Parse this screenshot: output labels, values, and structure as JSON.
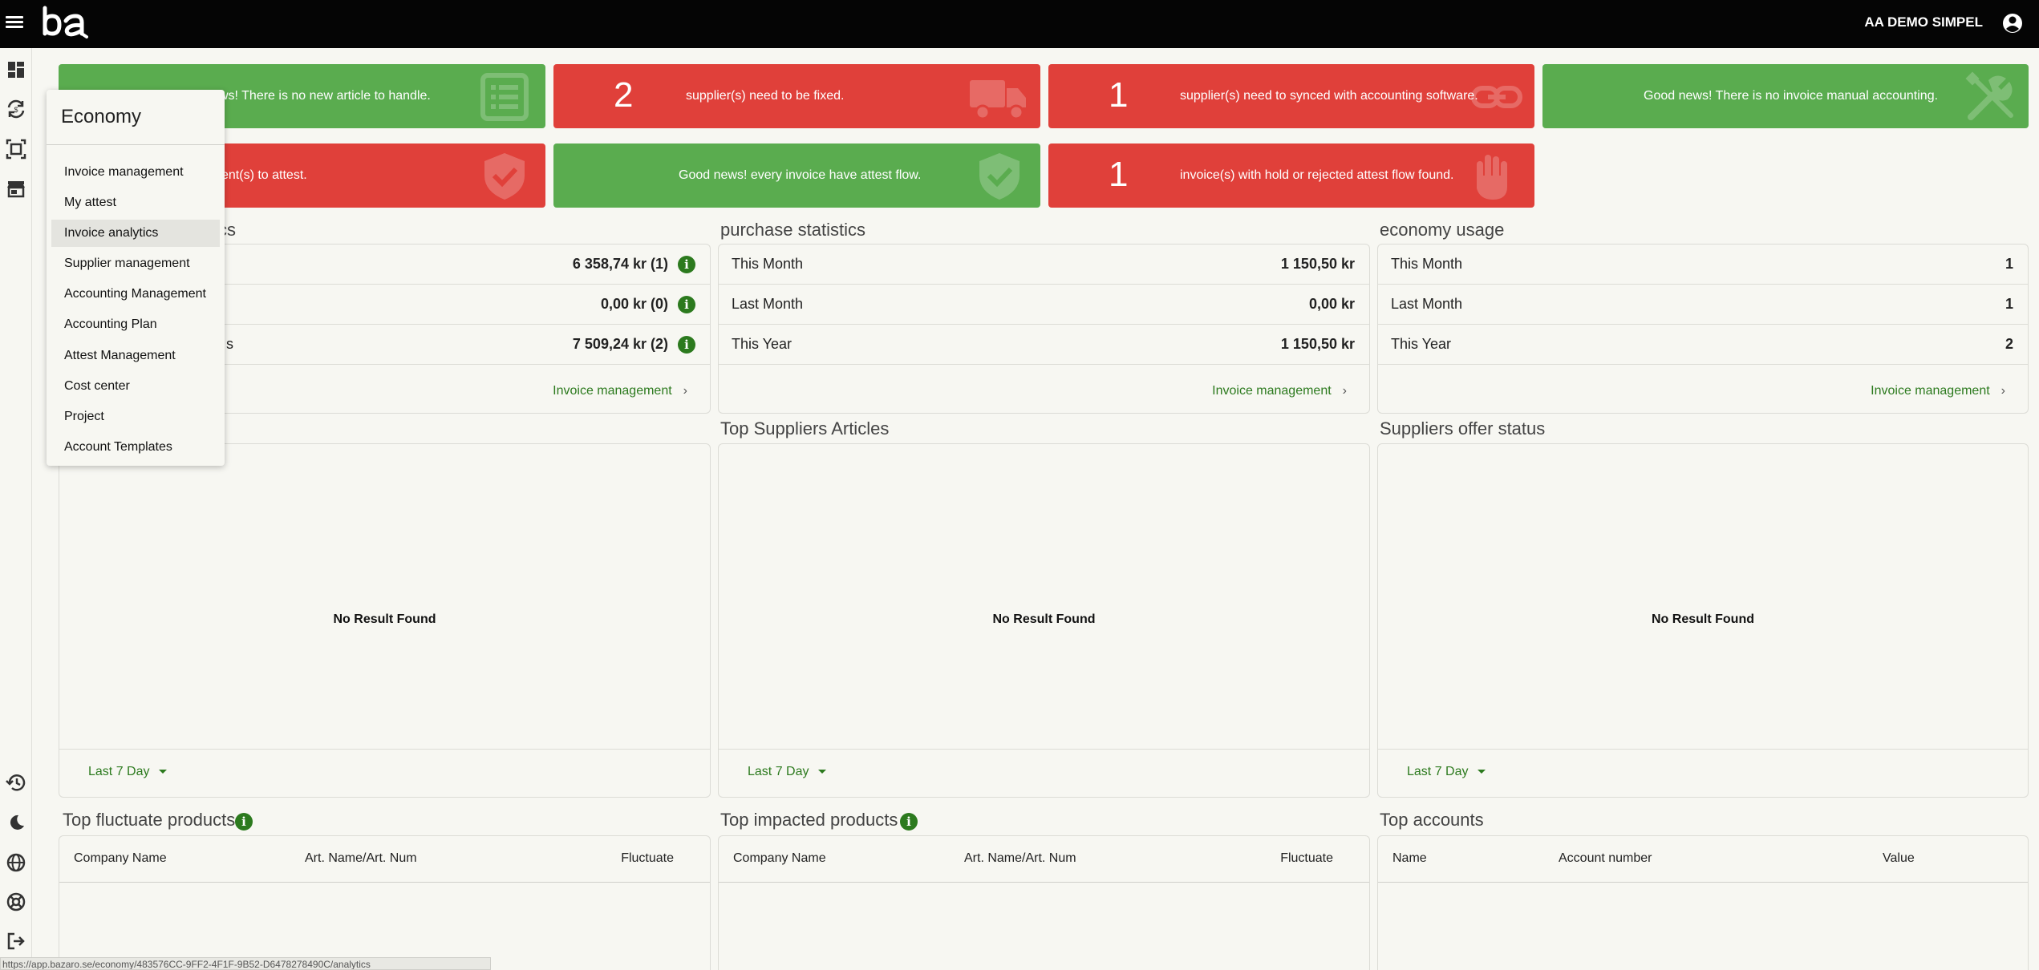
{
  "topbar": {
    "user_name": "AA DEMO SIMPEL"
  },
  "alerts": [
    {
      "color": "green",
      "count": "",
      "message": "Good news! There is no new article to handle.",
      "visible_message": "ws! There is no new article to handle.",
      "icon": "list-icon"
    },
    {
      "color": "red",
      "count": "2",
      "message": "supplier(s) need to be fixed.",
      "icon": "truck-icon"
    },
    {
      "color": "red",
      "count": "1",
      "message": "supplier(s) need to synced with accounting software.",
      "icon": "link-icon"
    },
    {
      "color": "green",
      "count": "",
      "message": "Good news! There is no invoice manual accounting.",
      "icon": "tools-icon"
    },
    {
      "color": "red",
      "count": "",
      "message": "ent(s) to attest.",
      "icon": "shield-check-icon"
    },
    {
      "color": "green",
      "count": "",
      "message": "Good news! every invoice have attest flow.",
      "icon": "shield-check-icon"
    },
    {
      "color": "red",
      "count": "1",
      "message": "invoice(s) with hold or rejected attest flow found.",
      "icon": "hand-icon"
    }
  ],
  "stats": {
    "invoice": {
      "title_visible": "stics",
      "rows": [
        {
          "label": "",
          "value": "6 358,74 kr (1)"
        },
        {
          "label": "",
          "value": "0,00 kr (0)"
        },
        {
          "label": "s",
          "value": "7 509,24 kr (2)"
        }
      ],
      "link": "Invoice management"
    },
    "purchase": {
      "title": "purchase statistics",
      "rows": [
        {
          "label": "This Month",
          "value": "1 150,50 kr"
        },
        {
          "label": "Last Month",
          "value": "0,00 kr"
        },
        {
          "label": "This Year",
          "value": "1 150,50 kr"
        }
      ],
      "link": "Invoice management"
    },
    "usage": {
      "title": "economy usage",
      "rows": [
        {
          "label": "This Month",
          "value": "1"
        },
        {
          "label": "Last Month",
          "value": "1"
        },
        {
          "label": "This Year",
          "value": "2"
        }
      ],
      "link": "Invoice management"
    }
  },
  "charts": [
    {
      "title": "",
      "empty_text": "No Result Found",
      "range": "Last 7 Day"
    },
    {
      "title": "Top Suppliers Articles",
      "empty_text": "No Result Found",
      "range": "Last 7 Day"
    },
    {
      "title": "Suppliers offer status",
      "empty_text": "No Result Found",
      "range": "Last 7 Day"
    }
  ],
  "tables": [
    {
      "title": "Top fluctuate products",
      "columns": [
        "Company Name",
        "Art. Name/Art. Num",
        "Fluctuate"
      ]
    },
    {
      "title": "Top impacted products",
      "columns": [
        "Company Name",
        "Art. Name/Art. Num",
        "Fluctuate"
      ]
    },
    {
      "title": "Top accounts",
      "columns": [
        "Name",
        "Account number",
        "Value"
      ]
    }
  ],
  "menu": {
    "title": "Economy",
    "items": [
      "Invoice management",
      "My attest",
      "Invoice analytics",
      "Supplier management",
      "Accounting Management",
      "Accounting Plan",
      "Attest Management",
      "Cost center",
      "Project",
      "Account Templates"
    ],
    "active": "Invoice analytics"
  },
  "status_url": "https://app.bazaro.se/economy/483576CC-9FF2-4F1F-9B52-D6478278490C/analytics",
  "colors": {
    "green": "#5aac4f",
    "red": "#e0403a",
    "accent": "#2c7a1e",
    "topbar": "#050505",
    "background": "#f7f7f2"
  }
}
